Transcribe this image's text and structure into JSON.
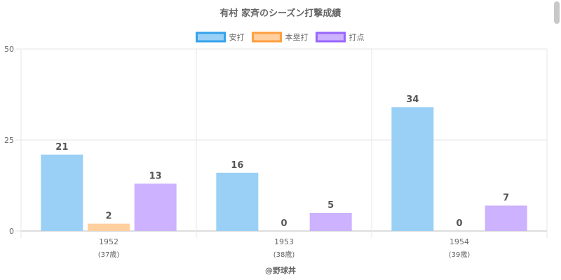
{
  "chart_data": {
    "type": "bar",
    "title": "有村 家斉のシーズン打撃成績",
    "categories": [
      "1952",
      "1953",
      "1954"
    ],
    "category_sublabels": [
      "(37歳)",
      "(38歳)",
      "(39歳)"
    ],
    "series": [
      {
        "name": "安打",
        "values": [
          21,
          16,
          34
        ],
        "fill": "#9ad0f5",
        "stroke": "#36a2eb"
      },
      {
        "name": "本塁打",
        "values": [
          2,
          0,
          0
        ],
        "fill": "#ffcf9f",
        "stroke": "#ff9f40"
      },
      {
        "name": "打点",
        "values": [
          13,
          5,
          7
        ],
        "fill": "#ccb2ff",
        "stroke": "#9966ff"
      }
    ],
    "ylim": [
      0,
      50
    ],
    "yticks": [
      0,
      25,
      50
    ],
    "grid": true,
    "legend": "top",
    "credit": "@野球丼"
  }
}
